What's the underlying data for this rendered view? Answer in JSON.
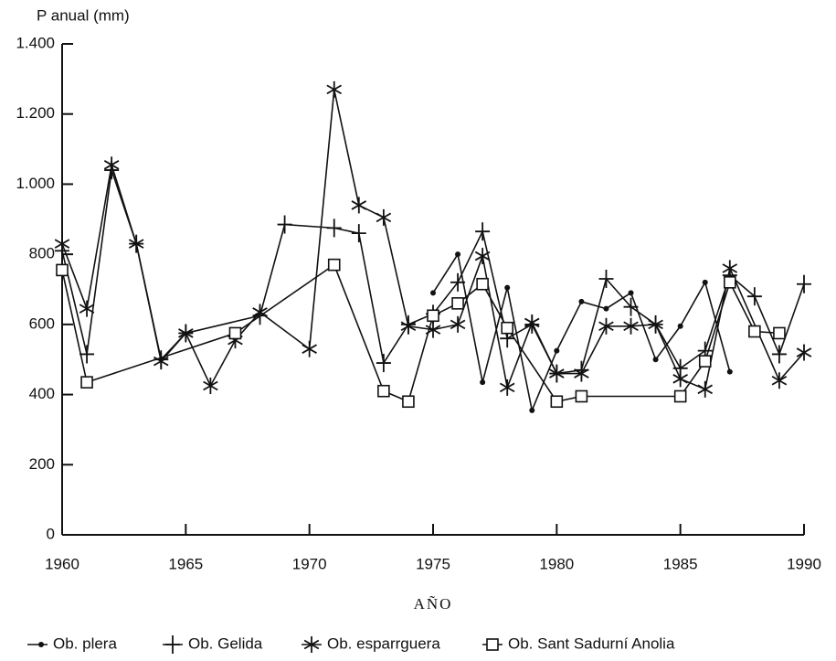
{
  "chart_data": {
    "type": "line",
    "ylabel": "P anual (mm)",
    "xlabel": "AÑO",
    "xlim": [
      1960,
      1990
    ],
    "xticks": [
      1960,
      1965,
      1970,
      1975,
      1980,
      1985,
      1990
    ],
    "ylim": [
      0,
      1400
    ],
    "yticks": [
      0,
      200,
      400,
      600,
      800,
      {
        "value": 1000,
        "label": "1.000"
      },
      {
        "value": 1200,
        "label": "1.200"
      },
      {
        "value": 1400,
        "label": "1.400"
      }
    ],
    "series": [
      {
        "name": "Ob. plera",
        "color": "#111111",
        "marker": "circle",
        "x": [
          1975,
          1976,
          1977,
          1978,
          1979,
          1980,
          1981,
          1982,
          1983,
          1984,
          1985,
          1986,
          1987
        ],
        "values": [
          690,
          800,
          435,
          705,
          355,
          525,
          665,
          645,
          690,
          500,
          595,
          720,
          465
        ]
      },
      {
        "name": "Ob. Gelida",
        "color": "#111111",
        "marker": "plus",
        "x": [
          1960,
          1961,
          1962,
          1963,
          1964,
          1965,
          1968,
          1969,
          1971,
          1972,
          1973,
          1974,
          1975,
          1976,
          1977,
          1978,
          1979,
          1980,
          1981,
          1982,
          1983,
          1984,
          1985,
          1986,
          1987,
          1988,
          1989,
          1990
        ],
        "values": [
          810,
          515,
          1040,
          830,
          500,
          575,
          625,
          885,
          875,
          860,
          490,
          600,
          630,
          720,
          865,
          560,
          600,
          460,
          470,
          730,
          650,
          600,
          475,
          525,
          740,
          680,
          515,
          715
        ]
      },
      {
        "name": "Ob. esparrguera",
        "color": "#111111",
        "marker": "star",
        "x": [
          1960,
          1961,
          1962,
          1963,
          1964,
          1965,
          1966,
          1967,
          1968,
          1970,
          1971,
          1972,
          1973,
          1974,
          1975,
          1976,
          1977,
          1978,
          1979,
          1980,
          1981,
          1982,
          1983,
          1984,
          1985,
          1986,
          1987,
          1989,
          1990
        ],
        "values": [
          830,
          645,
          1055,
          830,
          495,
          575,
          425,
          555,
          635,
          530,
          1270,
          940,
          905,
          595,
          585,
          600,
          795,
          420,
          605,
          460,
          460,
          595,
          595,
          600,
          445,
          415,
          760,
          440,
          520
        ]
      },
      {
        "name": "Ob. Sant Sadurní Anolia",
        "color": "#111111",
        "marker": "square",
        "x": [
          1960,
          1961,
          1967,
          1971,
          1973,
          1974,
          1975,
          1976,
          1977,
          1978,
          1980,
          1981,
          1985,
          1986,
          1987,
          1988,
          1989
        ],
        "values": [
          755,
          435,
          575,
          770,
          410,
          380,
          625,
          660,
          715,
          590,
          380,
          395,
          395,
          495,
          720,
          580,
          575
        ]
      }
    ]
  }
}
